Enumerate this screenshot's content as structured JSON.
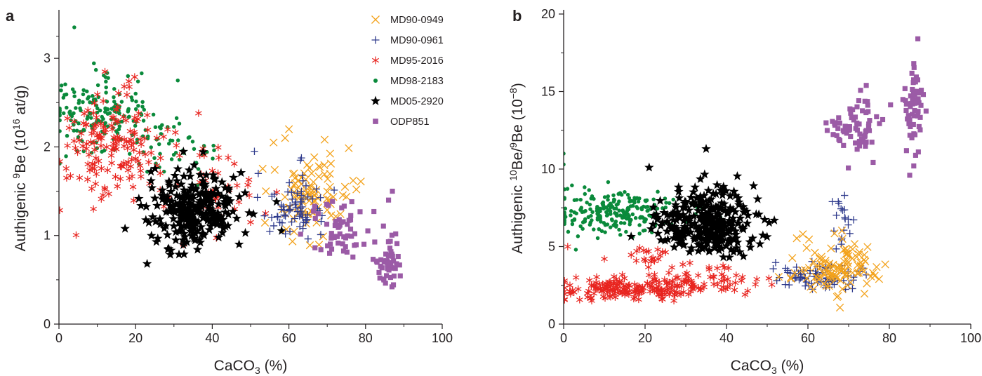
{
  "figure": {
    "colors": {
      "MD90-0949": "#f3a21b",
      "MD90-0961": "#2e3a8c",
      "MD95-2016": "#e8241f",
      "MD98-2183": "#0a8a3b",
      "MD05-2920": "#000000",
      "ODP851": "#9b5ba6",
      "axis": "#231f20"
    },
    "legend": [
      {
        "name": "MD90-0949",
        "marker": "x-icon"
      },
      {
        "name": "MD90-0961",
        "marker": "plus-icon"
      },
      {
        "name": "MD95-2016",
        "marker": "asterisk-icon"
      },
      {
        "name": "MD98-2183",
        "marker": "dot-icon"
      },
      {
        "name": "MD05-2920",
        "marker": "star-icon"
      },
      {
        "name": "ODP851",
        "marker": "square-icon"
      }
    ]
  },
  "chart_data": [
    {
      "panel": "a",
      "type": "scatter",
      "xlabel_main": "CaCO",
      "xlabel_sub": "3",
      "xlabel_tail": " (%)",
      "ylabel_main": "Authigenic ",
      "ylabel_sup1": "9",
      "ylabel_mid": "Be (10",
      "ylabel_sup2": "16",
      "ylabel_tail": " at/g)",
      "xlim": [
        0,
        100
      ],
      "ylim": [
        0,
        3.5
      ],
      "xticks": [
        0,
        20,
        40,
        60,
        80,
        100
      ],
      "yticks": [
        0,
        1,
        2,
        3
      ],
      "grid": false,
      "legend_placement": "top-right",
      "series": [
        {
          "name": "MD98-2183",
          "clusters": [
            {
              "cx": 10,
              "cy": 2.35,
              "sx": 7,
              "sy": 0.2,
              "n": 170
            },
            {
              "cx": 28,
              "cy": 1.95,
              "sx": 6,
              "sy": 0.15,
              "n": 45
            }
          ],
          "extra": [
            [
              4,
              3.35
            ],
            [
              18,
              2.8
            ],
            [
              31,
              2.75
            ]
          ]
        },
        {
          "name": "MD95-2016",
          "clusters": [
            {
              "cx": 15,
              "cy": 2.05,
              "sx": 7,
              "sy": 0.3,
              "n": 150
            },
            {
              "cx": 38,
              "cy": 1.5,
              "sx": 6,
              "sy": 0.25,
              "n": 40
            }
          ],
          "extra": [
            [
              12,
              2.85
            ],
            [
              2,
              1.65
            ],
            [
              9,
              1.3
            ],
            [
              13,
              1.47
            ],
            [
              50,
              1.15
            ]
          ]
        },
        {
          "name": "MD05-2920",
          "clusters": [
            {
              "cx": 35,
              "cy": 1.3,
              "sx": 6.5,
              "sy": 0.22,
              "n": 260
            }
          ],
          "extra": [
            [
              23,
              0.68
            ],
            [
              47,
              0.9
            ]
          ]
        },
        {
          "name": "MD90-0949",
          "clusters": [
            {
              "cx": 65,
              "cy": 1.45,
              "sx": 5,
              "sy": 0.25,
              "n": 95
            }
          ],
          "extra": [
            [
              60,
              2.2
            ],
            [
              59,
              2.1
            ],
            [
              56,
              2.05
            ]
          ]
        },
        {
          "name": "MD90-0961",
          "clusters": [
            {
              "cx": 62,
              "cy": 1.35,
              "sx": 4.5,
              "sy": 0.18,
              "n": 70
            }
          ],
          "extra": [
            [
              51,
              1.95
            ],
            [
              52,
              1.7
            ],
            [
              63,
              1.85
            ]
          ]
        },
        {
          "name": "ODP851",
          "clusters": [
            {
              "cx": 73,
              "cy": 1.05,
              "sx": 4,
              "sy": 0.18,
              "n": 55
            },
            {
              "cx": 86,
              "cy": 0.7,
              "sx": 1.6,
              "sy": 0.17,
              "n": 50
            }
          ],
          "extra": [
            [
              87,
              1.5
            ],
            [
              86,
              1.4
            ]
          ]
        }
      ]
    },
    {
      "panel": "b",
      "type": "scatter",
      "xlabel_main": "CaCO",
      "xlabel_sub": "3",
      "xlabel_tail": " (%)",
      "ylabel_main": "Authigenic ",
      "ylabel_sup1": "10",
      "ylabel_mid": "Be/",
      "ylabel_sup2": "9",
      "ylabel_tail": "Be (10",
      "ylabel_sup3": "−8",
      "ylabel_end": ")",
      "xlim": [
        0,
        100
      ],
      "ylim": [
        0,
        20
      ],
      "xticks": [
        0,
        20,
        40,
        60,
        80,
        100
      ],
      "yticks": [
        0,
        5,
        10,
        15,
        20
      ],
      "grid": false,
      "series": [
        {
          "name": "MD98-2183",
          "clusters": [
            {
              "cx": 13,
              "cy": 7.2,
              "sx": 7.5,
              "sy": 0.7,
              "n": 230
            }
          ],
          "extra": [
            [
              0,
              11
            ],
            [
              0,
              10.3
            ],
            [
              3,
              4.8
            ]
          ]
        },
        {
          "name": "MD95-2016",
          "clusters": [
            {
              "cx": 17,
              "cy": 2.3,
              "sx": 9,
              "sy": 0.35,
              "n": 170
            },
            {
              "cx": 35,
              "cy": 2.8,
              "sx": 8,
              "sy": 0.45,
              "n": 60
            },
            {
              "cx": 22,
              "cy": 4.4,
              "sx": 3,
              "sy": 0.5,
              "n": 20
            }
          ],
          "extra": [
            [
              1,
              5.0
            ],
            [
              10,
              4.2
            ]
          ]
        },
        {
          "name": "MD05-2920",
          "clusters": [
            {
              "cx": 35,
              "cy": 6.6,
              "sx": 6,
              "sy": 1.1,
              "n": 300
            }
          ],
          "extra": [
            [
              35,
              11.3
            ],
            [
              21,
              10.1
            ]
          ]
        },
        {
          "name": "MD90-0961",
          "clusters": [
            {
              "cx": 62,
              "cy": 3.1,
              "sx": 5,
              "sy": 0.45,
              "n": 80
            },
            {
              "cx": 68,
              "cy": 6.6,
              "sx": 1.8,
              "sy": 0.8,
              "n": 18
            }
          ],
          "extra": [
            [
              69,
              8.3
            ],
            [
              66,
              7.9
            ],
            [
              53,
              3.0
            ]
          ]
        },
        {
          "name": "MD90-0949",
          "clusters": [
            {
              "cx": 67,
              "cy": 3.7,
              "sx": 5,
              "sy": 0.8,
              "n": 110
            }
          ],
          "extra": [
            [
              76,
              3.3
            ]
          ]
        },
        {
          "name": "ODP851",
          "clusters": [
            {
              "cx": 72,
              "cy": 12.8,
              "sx": 3.2,
              "sy": 1.0,
              "n": 70
            },
            {
              "cx": 86,
              "cy": 13.8,
              "sx": 1.3,
              "sy": 1.4,
              "n": 60
            }
          ],
          "extra": [
            [
              87,
              18.4
            ],
            [
              86,
              16.8
            ],
            [
              85,
              9.6
            ],
            [
              86,
              10.2
            ]
          ]
        }
      ]
    }
  ]
}
